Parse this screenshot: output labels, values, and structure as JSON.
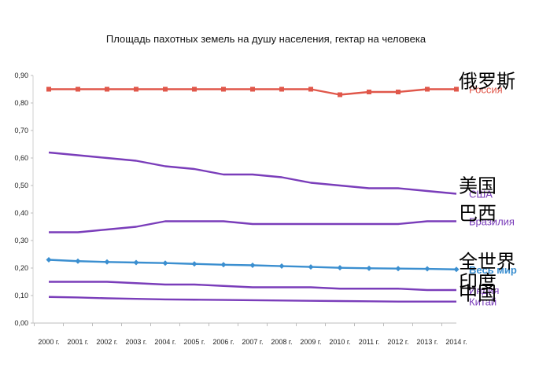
{
  "chart_data": {
    "type": "line",
    "title": "Площадь пахотных земель на душу населения, гектар на человека",
    "xlabel": "",
    "ylabel": "",
    "ylim": [
      0,
      0.9
    ],
    "y_ticks": [
      "0,00",
      "0,10",
      "0,20",
      "0,30",
      "0,40",
      "0,50",
      "0,60",
      "0,70",
      "0,80",
      "0,90"
    ],
    "categories": [
      "2000 г.",
      "2001 г.",
      "2002 г.",
      "2003 г.",
      "2004 г.",
      "2005 г.",
      "2006 г.",
      "2007 г.",
      "2008 г.",
      "2009 г.",
      "2010 г.",
      "2011 г.",
      "2012 г.",
      "2013 г.",
      "2014 г."
    ],
    "series": [
      {
        "name": "Россия",
        "zh_label": "俄罗斯",
        "color": "#e0574a",
        "marker": "square",
        "values": [
          0.85,
          0.85,
          0.85,
          0.85,
          0.85,
          0.85,
          0.85,
          0.85,
          0.85,
          0.85,
          0.83,
          0.84,
          0.84,
          0.85,
          0.85
        ]
      },
      {
        "name": "США",
        "zh_label": "美国",
        "color": "#7a3dba",
        "marker": "none",
        "values": [
          0.62,
          0.61,
          0.6,
          0.59,
          0.57,
          0.56,
          0.54,
          0.54,
          0.53,
          0.51,
          0.5,
          0.49,
          0.49,
          0.48,
          0.47
        ]
      },
      {
        "name": "Бразилия",
        "zh_label": "巴西",
        "color": "#7a3dba",
        "marker": "none",
        "values": [
          0.33,
          0.33,
          0.34,
          0.35,
          0.37,
          0.37,
          0.37,
          0.36,
          0.36,
          0.36,
          0.36,
          0.36,
          0.36,
          0.37,
          0.37
        ]
      },
      {
        "name": "Весь мир",
        "zh_label": "全世界",
        "color": "#3b8fd0",
        "marker": "diamond",
        "values": [
          0.23,
          0.225,
          0.222,
          0.22,
          0.218,
          0.215,
          0.212,
          0.21,
          0.207,
          0.204,
          0.201,
          0.199,
          0.198,
          0.197,
          0.195
        ]
      },
      {
        "name": "Индия",
        "zh_label": "印度",
        "color": "#7a3dba",
        "marker": "none",
        "values": [
          0.15,
          0.15,
          0.15,
          0.145,
          0.14,
          0.14,
          0.135,
          0.13,
          0.13,
          0.13,
          0.125,
          0.125,
          0.125,
          0.12,
          0.12
        ]
      },
      {
        "name": "Китай",
        "zh_label": "中国",
        "color": "#7a3dba",
        "marker": "none",
        "values": [
          0.095,
          0.093,
          0.09,
          0.088,
          0.086,
          0.085,
          0.084,
          0.083,
          0.082,
          0.081,
          0.08,
          0.079,
          0.078,
          0.078,
          0.078
        ]
      }
    ]
  }
}
